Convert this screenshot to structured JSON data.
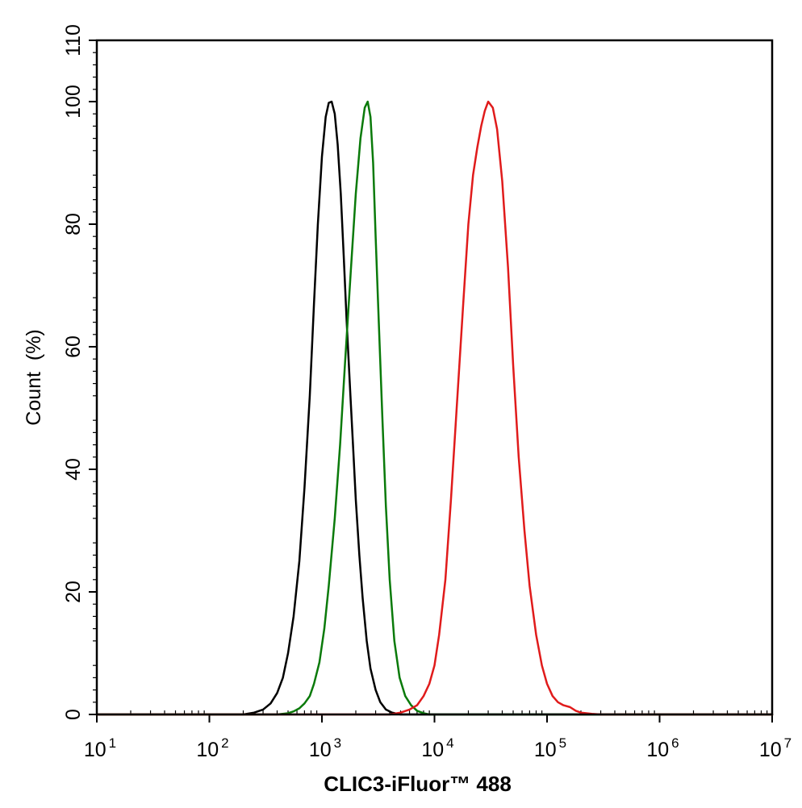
{
  "chart_data": {
    "type": "line",
    "title": "",
    "xlabel": "CLIC3-iFluor™ 488",
    "ylabel": "Count  (%)",
    "x_scale": "log10",
    "xlim": [
      10,
      10000000
    ],
    "ylim": [
      0,
      110
    ],
    "x_ticks": [
      {
        "base": "10",
        "exp": "1",
        "value": 10
      },
      {
        "base": "10",
        "exp": "2",
        "value": 100
      },
      {
        "base": "10",
        "exp": "3",
        "value": 1000
      },
      {
        "base": "10",
        "exp": "4",
        "value": 10000
      },
      {
        "base": "10",
        "exp": "5",
        "value": 100000
      },
      {
        "base": "10",
        "exp": "6",
        "value": 1000000
      },
      {
        "base": "10",
        "exp": "7",
        "value": 10000000
      }
    ],
    "y_ticks": [
      "0",
      "20",
      "40",
      "60",
      "80",
      "100",
      "110"
    ],
    "grid": false,
    "legend": "none",
    "series": [
      {
        "color": "#000000",
        "x": [
          10,
          100,
          200,
          250,
          300,
          350,
          400,
          450,
          500,
          560,
          630,
          700,
          780,
          850,
          920,
          1000,
          1080,
          1150,
          1220,
          1300,
          1380,
          1470,
          1560,
          1660,
          1780,
          1900,
          2000,
          2150,
          2300,
          2500,
          2700,
          3000,
          3300,
          3700,
          4200,
          5000,
          10000000
        ],
        "y": [
          0,
          0,
          0,
          0.3,
          0.8,
          1.8,
          3.5,
          6,
          10,
          16,
          25,
          37,
          52,
          67,
          80,
          91,
          97.5,
          99.8,
          100,
          98,
          93,
          85,
          75,
          64,
          53,
          43,
          35,
          26,
          19,
          12,
          7.5,
          4,
          2,
          0.8,
          0.3,
          0,
          0
        ]
      },
      {
        "color": "#0a7a0a",
        "x": [
          10,
          400,
          500,
          560,
          630,
          700,
          780,
          850,
          950,
          1050,
          1150,
          1300,
          1450,
          1600,
          1800,
          2000,
          2200,
          2400,
          2550,
          2700,
          2850,
          3000,
          3200,
          3450,
          3700,
          4000,
          4400,
          4900,
          5500,
          6200,
          7000,
          8000,
          9000,
          10000000
        ],
        "y": [
          0,
          0,
          0.2,
          0.5,
          1,
          1.8,
          3,
          5,
          8.5,
          14,
          21,
          32,
          44,
          57,
          72,
          85,
          94,
          99,
          100,
          97.5,
          90,
          78,
          64,
          48,
          34,
          22,
          12,
          6,
          3,
          1.5,
          0.6,
          0.2,
          0,
          0
        ]
      },
      {
        "color": "#e01b1b",
        "x": [
          10,
          4000,
          5000,
          6000,
          7000,
          8000,
          9000,
          10000,
          11000,
          12500,
          14000,
          16000,
          18000,
          20000,
          22000,
          24000,
          26000,
          28000,
          30000,
          33000,
          36000,
          40000,
          45000,
          50000,
          56000,
          63000,
          70000,
          80000,
          90000,
          100000,
          112000,
          125000,
          140000,
          160000,
          180000,
          200000,
          250000,
          300000,
          10000000
        ],
        "y": [
          0,
          0,
          0.3,
          0.8,
          1.5,
          3,
          5,
          8,
          13,
          22,
          35,
          52,
          67,
          80,
          88,
          92.5,
          96,
          98.5,
          100,
          99,
          95.5,
          87,
          73,
          57,
          42,
          30,
          21,
          13,
          8,
          5,
          3,
          2,
          1.5,
          1.2,
          0.6,
          0.3,
          0.1,
          0,
          0
        ]
      }
    ]
  }
}
